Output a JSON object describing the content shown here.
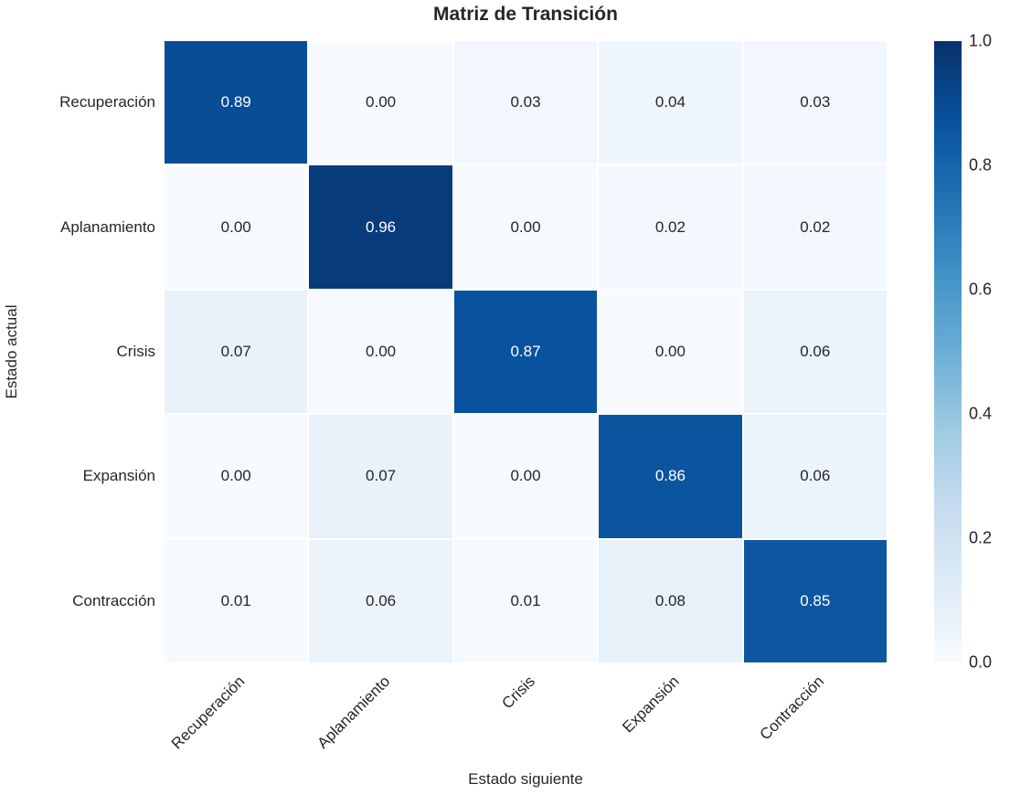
{
  "title": "Matriz de Transición",
  "chart_data": {
    "type": "heatmap",
    "title": "Matriz de Transición",
    "xlabel": "Estado siguiente",
    "ylabel": "Estado actual",
    "categories": [
      "Recuperación",
      "Aplanamiento",
      "Crisis",
      "Expansión",
      "Contracción"
    ],
    "rows": [
      [
        0.89,
        0.0,
        0.03,
        0.04,
        0.03
      ],
      [
        0.0,
        0.96,
        0.0,
        0.02,
        0.02
      ],
      [
        0.07,
        0.0,
        0.87,
        0.0,
        0.06
      ],
      [
        0.0,
        0.07,
        0.0,
        0.86,
        0.06
      ],
      [
        0.01,
        0.06,
        0.01,
        0.08,
        0.85
      ]
    ],
    "vmin": 0.0,
    "vmax": 1.0,
    "value_decimals": 2,
    "colormap": "Blues",
    "colorbar_ticks": [
      "1.0",
      "0.8",
      "0.6",
      "0.4",
      "0.2",
      "0.0"
    ],
    "legend_position": "right-colorbar",
    "grid": false
  },
  "colors": {
    "background": "#ffffff",
    "gridline": "#ffffff",
    "annot_dark": "#262626",
    "annot_light": "#ffffff",
    "cmap_anchors": [
      "#f7fbff",
      "#deebf7",
      "#c6dbef",
      "#9ecae1",
      "#6baed6",
      "#4292c6",
      "#2171b5",
      "#08519c",
      "#08306b"
    ]
  }
}
